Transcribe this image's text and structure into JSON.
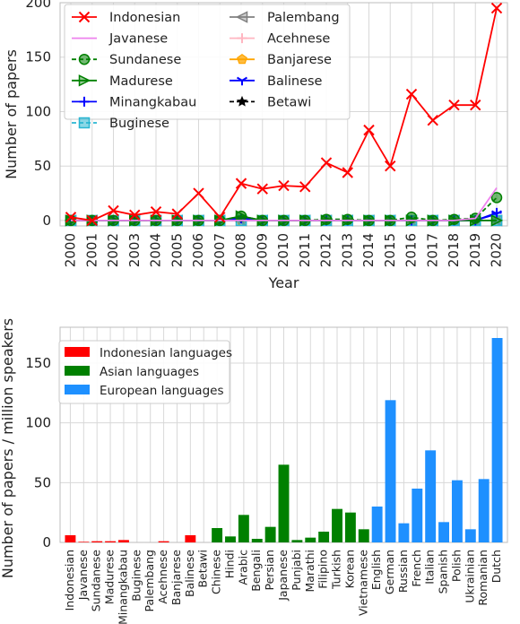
{
  "chart_data": [
    {
      "type": "line",
      "xlabel": "Year",
      "ylabel": "Number of papers",
      "ylim": [
        -5,
        200
      ],
      "yticks": [
        0,
        50,
        100,
        150,
        200
      ],
      "categories": [
        "2000",
        "2001",
        "2002",
        "2003",
        "2004",
        "2005",
        "2006",
        "2007",
        "2008",
        "2009",
        "2010",
        "2011",
        "2012",
        "2013",
        "2014",
        "2015",
        "2016",
        "2017",
        "2018",
        "2019",
        "2020"
      ],
      "grid": true,
      "legend_position": "top-left",
      "series": [
        {
          "name": "Indonesian",
          "color": "#ff0000",
          "marker": "x",
          "dash": "",
          "values": [
            3,
            0,
            9,
            5,
            8,
            6,
            25,
            3,
            34,
            29,
            32,
            31,
            53,
            44,
            83,
            50,
            116,
            92,
            106,
            106,
            195
          ]
        },
        {
          "name": "Javanese",
          "color": "#ee82ee",
          "marker": "none",
          "dash": "",
          "values": [
            0,
            0,
            0,
            0,
            0,
            0,
            0,
            0,
            0,
            0,
            0,
            0,
            0,
            0,
            0,
            0,
            0,
            0,
            0,
            2,
            30
          ]
        },
        {
          "name": "Sundanese",
          "color": "#008000",
          "marker": "circle",
          "dash": "5,3",
          "values": [
            0,
            0,
            0,
            0,
            0,
            0,
            0,
            0,
            4,
            0,
            0,
            0,
            1,
            1,
            0,
            0,
            3,
            0,
            1,
            2,
            21
          ]
        },
        {
          "name": "Madurese",
          "color": "#008000",
          "marker": "triangle-right",
          "dash": "",
          "values": [
            0,
            0,
            0,
            0,
            0,
            0,
            0,
            0,
            4,
            0,
            0,
            0,
            0,
            0,
            0,
            0,
            0,
            0,
            0,
            0,
            0
          ]
        },
        {
          "name": "Minangkabau",
          "color": "#0000ff",
          "marker": "plus",
          "dash": "",
          "values": [
            0,
            0,
            0,
            0,
            0,
            0,
            0,
            0,
            2,
            0,
            0,
            0,
            0,
            0,
            0,
            0,
            0,
            0,
            0,
            0,
            7
          ]
        },
        {
          "name": "Buginese",
          "color": "#29b6d2",
          "marker": "square",
          "dash": "5,3",
          "values": [
            0,
            0,
            0,
            0,
            0,
            0,
            0,
            0,
            0,
            0,
            0,
            0,
            0,
            0,
            0,
            0,
            0,
            0,
            0,
            0,
            0
          ]
        },
        {
          "name": "Palembang",
          "color": "#808080",
          "marker": "triangle-left",
          "dash": "",
          "values": [
            0,
            0,
            0,
            0,
            0,
            0,
            0,
            0,
            0,
            0,
            0,
            0,
            0,
            0,
            0,
            0,
            0,
            0,
            0,
            0,
            0
          ]
        },
        {
          "name": "Acehnese",
          "color": "#ffb6c1",
          "marker": "plus",
          "dash": "",
          "values": [
            0,
            0,
            0,
            0,
            0,
            0,
            0,
            0,
            0,
            0,
            0,
            0,
            0,
            0,
            0,
            0,
            0,
            0,
            0,
            0,
            0
          ]
        },
        {
          "name": "Banjarese",
          "color": "#ffa500",
          "marker": "pentagon",
          "dash": "",
          "values": [
            0,
            0,
            0,
            0,
            0,
            0,
            0,
            0,
            0,
            0,
            0,
            0,
            0,
            0,
            0,
            0,
            0,
            0,
            0,
            0,
            0
          ]
        },
        {
          "name": "Balinese",
          "color": "#0000ff",
          "marker": "tri-down",
          "dash": "",
          "values": [
            0,
            0,
            0,
            0,
            0,
            0,
            0,
            0,
            0,
            0,
            0,
            0,
            0,
            0,
            0,
            0,
            0,
            0,
            0,
            0,
            6
          ]
        },
        {
          "name": "Betawi",
          "color": "#000000",
          "marker": "star",
          "dash": "5,3",
          "values": [
            0,
            0,
            0,
            0,
            0,
            0,
            0,
            0,
            0,
            0,
            0,
            0,
            0,
            0,
            0,
            0,
            0,
            0,
            0,
            0,
            0
          ]
        }
      ]
    },
    {
      "type": "bar",
      "ylabel": "Number of papers / million speakers",
      "ylim": [
        0,
        180
      ],
      "yticks": [
        0,
        50,
        100,
        150
      ],
      "grid": true,
      "legend_position": "top-left",
      "groups": [
        {
          "name": "Indonesian languages",
          "color": "#ff0000"
        },
        {
          "name": "Asian languages",
          "color": "#008000"
        },
        {
          "name": "European languages",
          "color": "#1e90ff"
        }
      ],
      "categories": [
        "Indonesian",
        "Javanese",
        "Sundanese",
        "Madurese",
        "Minangkabau",
        "Buginese",
        "Palembang",
        "Acehnese",
        "Banjarese",
        "Balinese",
        "Betawi",
        "Chinese",
        "Hindi",
        "Arabic",
        "Bengali",
        "Persian",
        "Japanese",
        "Punjabi",
        "Marathi",
        "Filipino",
        "Turkish",
        "Korean",
        "Vietnamese",
        "English",
        "German",
        "Russian",
        "French",
        "Italian",
        "Spanish",
        "Polish",
        "Ukrainian",
        "Romanian",
        "Dutch"
      ],
      "values": [
        6,
        0.5,
        1,
        1,
        2,
        0,
        0,
        1,
        0,
        6,
        0,
        12,
        5,
        23,
        3,
        13,
        65,
        2,
        4,
        9,
        28,
        25,
        11,
        30,
        119,
        16,
        45,
        77,
        17,
        52,
        11,
        53,
        171
      ],
      "group_index": [
        0,
        0,
        0,
        0,
        0,
        0,
        0,
        0,
        0,
        0,
        0,
        1,
        1,
        1,
        1,
        1,
        1,
        1,
        1,
        1,
        1,
        1,
        1,
        2,
        2,
        2,
        2,
        2,
        2,
        2,
        2,
        2,
        2
      ]
    }
  ]
}
